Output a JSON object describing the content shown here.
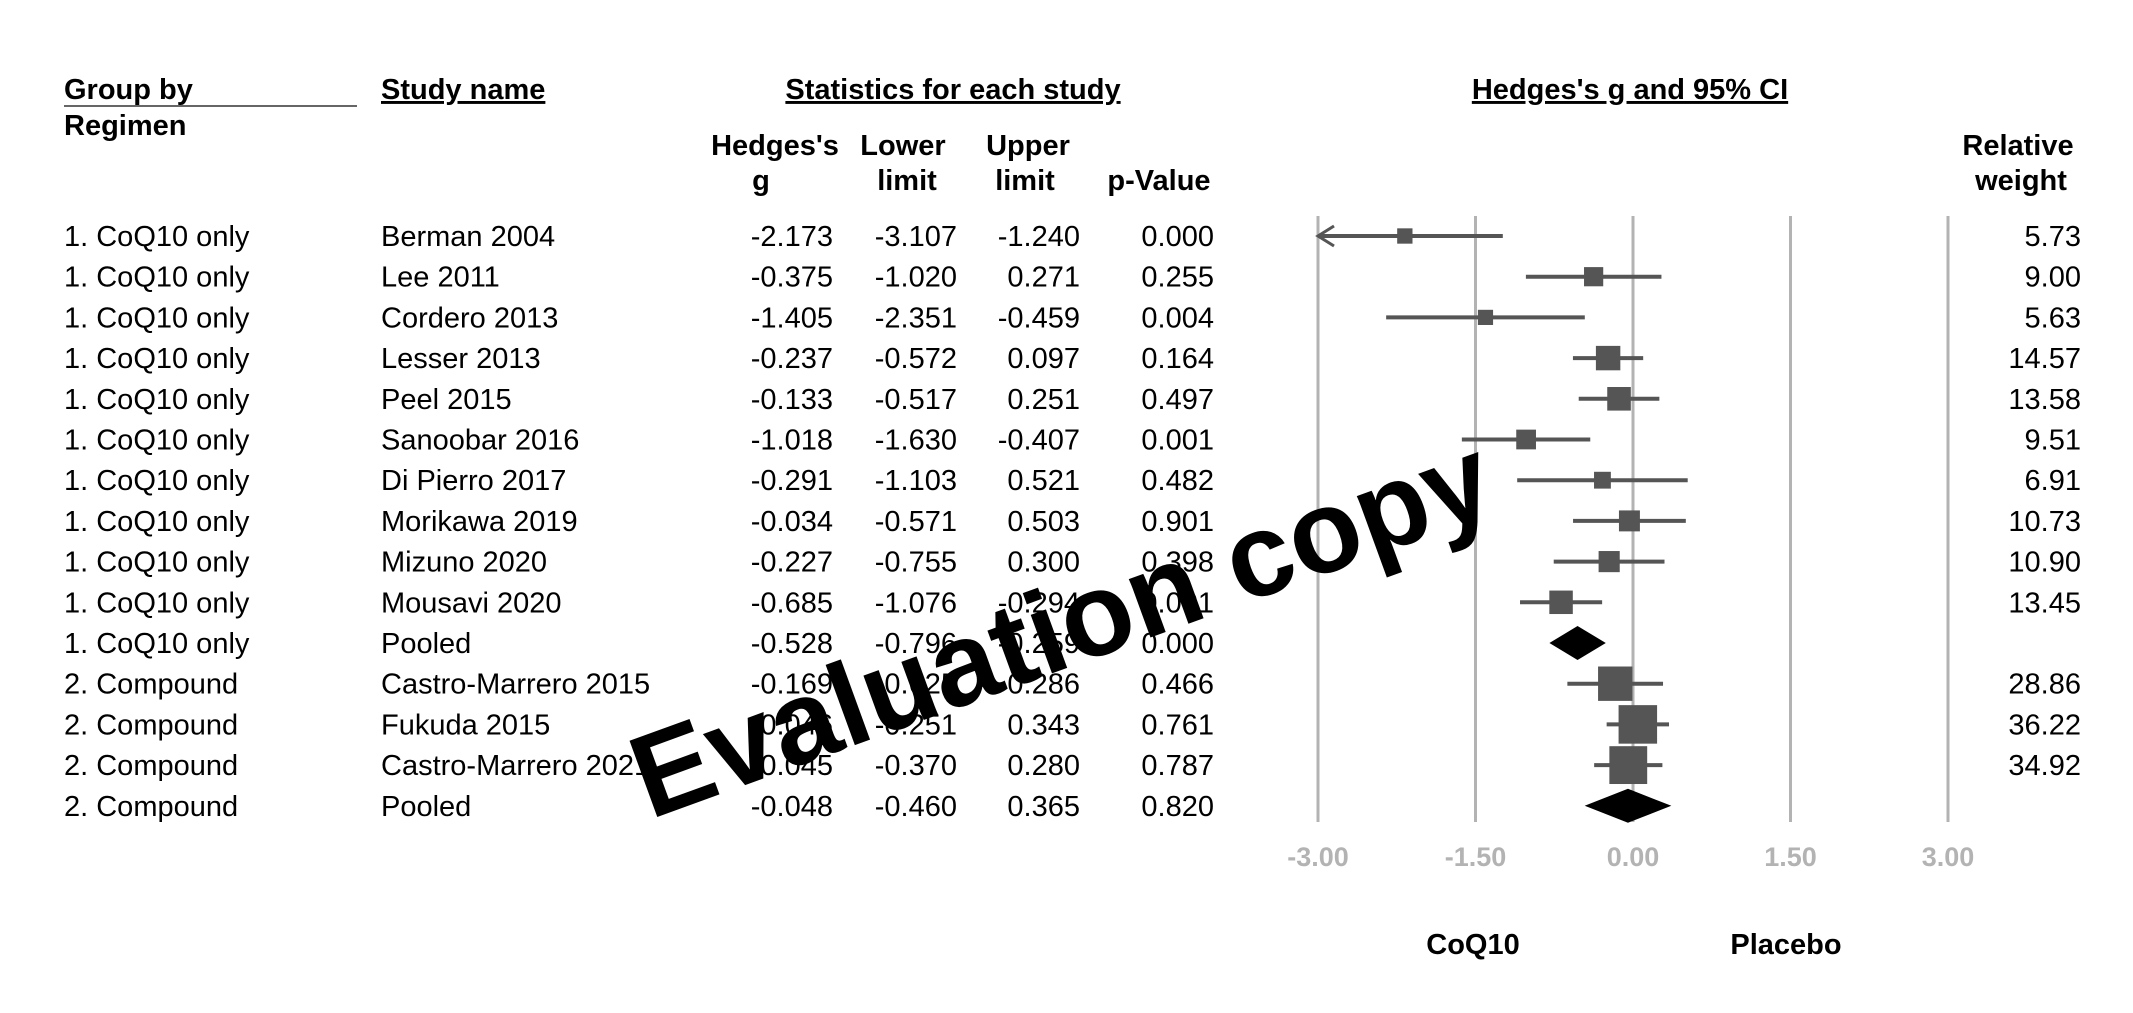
{
  "headers": {
    "group_by_line1": "Group by",
    "group_by_line2": "Regimen",
    "study_name": "Study name",
    "stats_group": "Statistics for each study",
    "plot_title": "Hedges's g and 95% CI",
    "g_line1": "Hedges's",
    "g_line2": "g",
    "lower_line1": "Lower",
    "lower_line2": "limit",
    "upper_line1": "Upper",
    "upper_line2": "limit",
    "p_value": "p-Value",
    "weight_line1": "Relative",
    "weight_line2": "weight"
  },
  "side_labels": {
    "left": "CoQ10",
    "right": "Placebo"
  },
  "watermark": "Evaluation copy",
  "colors": {
    "marker": "#555555",
    "pooled": "#000000",
    "axis": "#b3b3b3"
  },
  "chart_data": {
    "type": "forest",
    "x_range": [
      -3.0,
      3.0
    ],
    "ticks": [
      "-3.00",
      "-1.50",
      "0.00",
      "1.50",
      "3.00"
    ],
    "tick_values": [
      -3.0,
      -1.5,
      0.0,
      1.5,
      3.0
    ],
    "rows": [
      {
        "group": "1. CoQ10 only",
        "study": "Berman 2004",
        "g": "-2.173",
        "lower": "-3.107",
        "upper": "-1.240",
        "p": "0.000",
        "weight": "5.73",
        "gv": -2.173,
        "lv": -3.107,
        "uv": -1.24,
        "wv": 5.73,
        "pooled": false
      },
      {
        "group": "1. CoQ10 only",
        "study": "Lee 2011",
        "g": "-0.375",
        "lower": "-1.020",
        "upper": "0.271",
        "p": "0.255",
        "weight": "9.00",
        "gv": -0.375,
        "lv": -1.02,
        "uv": 0.271,
        "wv": 9.0,
        "pooled": false
      },
      {
        "group": "1. CoQ10 only",
        "study": "Cordero 2013",
        "g": "-1.405",
        "lower": "-2.351",
        "upper": "-0.459",
        "p": "0.004",
        "weight": "5.63",
        "gv": -1.405,
        "lv": -2.351,
        "uv": -0.459,
        "wv": 5.63,
        "pooled": false
      },
      {
        "group": "1. CoQ10 only",
        "study": "Lesser 2013",
        "g": "-0.237",
        "lower": "-0.572",
        "upper": "0.097",
        "p": "0.164",
        "weight": "14.57",
        "gv": -0.237,
        "lv": -0.572,
        "uv": 0.097,
        "wv": 14.57,
        "pooled": false
      },
      {
        "group": "1. CoQ10 only",
        "study": "Peel 2015",
        "g": "-0.133",
        "lower": "-0.517",
        "upper": "0.251",
        "p": "0.497",
        "weight": "13.58",
        "gv": -0.133,
        "lv": -0.517,
        "uv": 0.251,
        "wv": 13.58,
        "pooled": false
      },
      {
        "group": "1. CoQ10 only",
        "study": "Sanoobar 2016",
        "g": "-1.018",
        "lower": "-1.630",
        "upper": "-0.407",
        "p": "0.001",
        "weight": "9.51",
        "gv": -1.018,
        "lv": -1.63,
        "uv": -0.407,
        "wv": 9.51,
        "pooled": false
      },
      {
        "group": "1. CoQ10 only",
        "study": "Di Pierro 2017",
        "g": "-0.291",
        "lower": "-1.103",
        "upper": "0.521",
        "p": "0.482",
        "weight": "6.91",
        "gv": -0.291,
        "lv": -1.103,
        "uv": 0.521,
        "wv": 6.91,
        "pooled": false
      },
      {
        "group": "1. CoQ10 only",
        "study": "Morikawa 2019",
        "g": "-0.034",
        "lower": "-0.571",
        "upper": "0.503",
        "p": "0.901",
        "weight": "10.73",
        "gv": -0.034,
        "lv": -0.571,
        "uv": 0.503,
        "wv": 10.73,
        "pooled": false
      },
      {
        "group": "1. CoQ10 only",
        "study": "Mizuno 2020",
        "g": "-0.227",
        "lower": "-0.755",
        "upper": "0.300",
        "p": "0.398",
        "weight": "10.90",
        "gv": -0.227,
        "lv": -0.755,
        "uv": 0.3,
        "wv": 10.9,
        "pooled": false
      },
      {
        "group": "1. CoQ10 only",
        "study": "Mousavi 2020",
        "g": "-0.685",
        "lower": "-1.076",
        "upper": "-0.294",
        "p": "0.001",
        "weight": "13.45",
        "gv": -0.685,
        "lv": -1.076,
        "uv": -0.294,
        "wv": 13.45,
        "pooled": false
      },
      {
        "group": "1. CoQ10 only",
        "study": "Pooled",
        "g": "-0.528",
        "lower": "-0.796",
        "upper": "-0.259",
        "p": "0.000",
        "weight": "",
        "gv": -0.528,
        "lv": -0.796,
        "uv": -0.259,
        "wv": 0,
        "pooled": true
      },
      {
        "group": "2. Compound",
        "study": "Castro-Marrero 2015",
        "g": "-0.169",
        "lower": "-0.625",
        "upper": "0.286",
        "p": "0.466",
        "weight": "28.86",
        "gv": -0.169,
        "lv": -0.625,
        "uv": 0.286,
        "wv": 28.86,
        "pooled": false
      },
      {
        "group": "2. Compound",
        "study": "Fukuda 2015",
        "g": "0.046",
        "lower": "-0.251",
        "upper": "0.343",
        "p": "0.761",
        "weight": "36.22",
        "gv": 0.046,
        "lv": -0.251,
        "uv": 0.343,
        "wv": 36.22,
        "pooled": false
      },
      {
        "group": "2. Compound",
        "study": "Castro-Marrero 2021",
        "g": "-0.045",
        "lower": "-0.370",
        "upper": "0.280",
        "p": "0.787",
        "weight": "34.92",
        "gv": -0.045,
        "lv": -0.37,
        "uv": 0.28,
        "wv": 34.92,
        "pooled": false
      },
      {
        "group": "2. Compound",
        "study": "Pooled",
        "g": "-0.048",
        "lower": "-0.460",
        "upper": "0.365",
        "p": "0.820",
        "weight": "",
        "gv": -0.048,
        "lv": -0.46,
        "uv": 0.365,
        "wv": 0,
        "pooled": true
      }
    ]
  }
}
